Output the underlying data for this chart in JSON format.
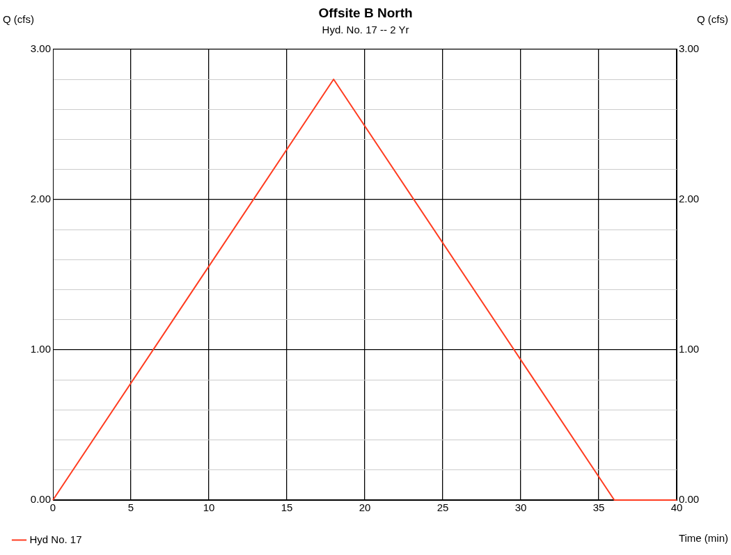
{
  "chart_data": {
    "type": "line",
    "title": "Offsite B North",
    "subtitle": "Hyd. No. 17 -- 2 Yr",
    "xlabel": "Time (min)",
    "ylabel": "Q (cfs)",
    "y2label": "Q (cfs)",
    "x": [
      0,
      18,
      36,
      40
    ],
    "series": [
      {
        "name": "Hyd No. 17",
        "color": "#ff3b1f",
        "values": [
          0,
          2.8,
          0,
          0
        ]
      }
    ],
    "xlim": [
      0,
      40
    ],
    "xticks": [
      0,
      5,
      10,
      15,
      20,
      25,
      30,
      35,
      40
    ],
    "ylim": [
      0,
      3
    ],
    "yticks": [
      {
        "value": 0,
        "label": "0.00"
      },
      {
        "value": 0.2,
        "label": null
      },
      {
        "value": 0.4,
        "label": null
      },
      {
        "value": 0.6,
        "label": null
      },
      {
        "value": 0.8,
        "label": null
      },
      {
        "value": 1,
        "label": "1.00"
      },
      {
        "value": 1.2,
        "label": null
      },
      {
        "value": 1.4,
        "label": null
      },
      {
        "value": 1.6,
        "label": null
      },
      {
        "value": 1.8,
        "label": null
      },
      {
        "value": 2,
        "label": "2.00"
      },
      {
        "value": 2.2,
        "label": null
      },
      {
        "value": 2.4,
        "label": null
      },
      {
        "value": 2.6,
        "label": null
      },
      {
        "value": 2.8,
        "label": null
      },
      {
        "value": 3,
        "label": "3.00"
      }
    ],
    "y2lim": [
      0,
      3
    ],
    "y2ticks": [
      {
        "value": 0,
        "label": "0.00"
      },
      {
        "value": 1,
        "label": "1.00"
      },
      {
        "value": 2,
        "label": "2.00"
      },
      {
        "value": 3,
        "label": "3.00"
      }
    ],
    "grid": true,
    "legend": "bottom left",
    "marker": "none",
    "line_style": "solid"
  }
}
